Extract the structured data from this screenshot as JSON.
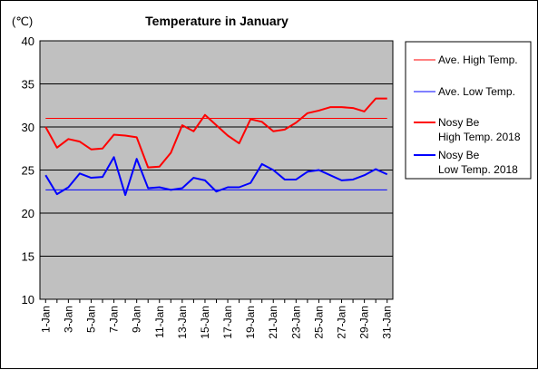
{
  "chart_data": {
    "type": "line",
    "title": "Temperature in January",
    "yunit": "(℃)",
    "ylim": [
      10,
      40
    ],
    "yticks": [
      10,
      15,
      20,
      25,
      30,
      35,
      40
    ],
    "grid": true,
    "legend_position": "right",
    "x": [
      "1-Jan",
      "2-Jan",
      "3-Jan",
      "4-Jan",
      "5-Jan",
      "6-Jan",
      "7-Jan",
      "8-Jan",
      "9-Jan",
      "10-Jan",
      "11-Jan",
      "12-Jan",
      "13-Jan",
      "14-Jan",
      "15-Jan",
      "16-Jan",
      "17-Jan",
      "18-Jan",
      "19-Jan",
      "20-Jan",
      "21-Jan",
      "22-Jan",
      "23-Jan",
      "24-Jan",
      "25-Jan",
      "26-Jan",
      "27-Jan",
      "28-Jan",
      "29-Jan",
      "30-Jan",
      "31-Jan"
    ],
    "xtick_labels": [
      "1-Jan",
      "3-Jan",
      "5-Jan",
      "7-Jan",
      "9-Jan",
      "11-Jan",
      "13-Jan",
      "15-Jan",
      "17-Jan",
      "19-Jan",
      "21-Jan",
      "23-Jan",
      "25-Jan",
      "27-Jan",
      "29-Jan",
      "31-Jan"
    ],
    "series": [
      {
        "name": "Ave. High Temp.",
        "color": "#ff0000",
        "style": "thin",
        "values": [
          31.0,
          31.0,
          31.0,
          31.0,
          31.0,
          31.0,
          31.0,
          31.0,
          31.0,
          31.0,
          31.0,
          31.0,
          31.0,
          31.0,
          31.0,
          31.0,
          31.0,
          31.0,
          31.0,
          31.0,
          31.0,
          31.0,
          31.0,
          31.0,
          31.0,
          31.0,
          31.0,
          31.0,
          31.0,
          31.0,
          31.0
        ]
      },
      {
        "name": "Ave. Low Temp.",
        "color": "#0000ff",
        "style": "thin",
        "values": [
          22.7,
          22.7,
          22.7,
          22.7,
          22.7,
          22.7,
          22.7,
          22.7,
          22.7,
          22.7,
          22.7,
          22.7,
          22.7,
          22.7,
          22.7,
          22.7,
          22.7,
          22.7,
          22.7,
          22.7,
          22.7,
          22.7,
          22.7,
          22.7,
          22.7,
          22.7,
          22.7,
          22.7,
          22.7,
          22.7,
          22.7
        ]
      },
      {
        "name": "Nosy Be High Temp. 2018",
        "name_lines": [
          "Nosy Be",
          "High Temp. 2018"
        ],
        "color": "#ff0000",
        "style": "thick",
        "values": [
          30.0,
          27.6,
          28.6,
          28.3,
          27.4,
          27.5,
          29.1,
          29.0,
          28.8,
          25.3,
          25.4,
          27.0,
          30.2,
          29.5,
          31.4,
          30.2,
          29.0,
          28.1,
          30.9,
          30.6,
          29.5,
          29.7,
          30.5,
          31.6,
          31.9,
          32.3,
          32.3,
          32.2,
          31.8,
          33.3,
          33.3
        ]
      },
      {
        "name": "Nosy Be Low Temp. 2018",
        "name_lines": [
          "Nosy Be",
          "Low Temp. 2018"
        ],
        "color": "#0000ff",
        "style": "thick",
        "values": [
          24.4,
          22.2,
          23.0,
          24.6,
          24.1,
          24.2,
          26.5,
          22.1,
          26.3,
          22.9,
          23.0,
          22.7,
          22.9,
          24.1,
          23.8,
          22.5,
          23.0,
          23.0,
          23.5,
          25.7,
          25.0,
          23.9,
          23.9,
          24.8,
          25.0,
          24.4,
          23.8,
          23.9,
          24.4,
          25.1,
          24.5
        ]
      }
    ]
  }
}
